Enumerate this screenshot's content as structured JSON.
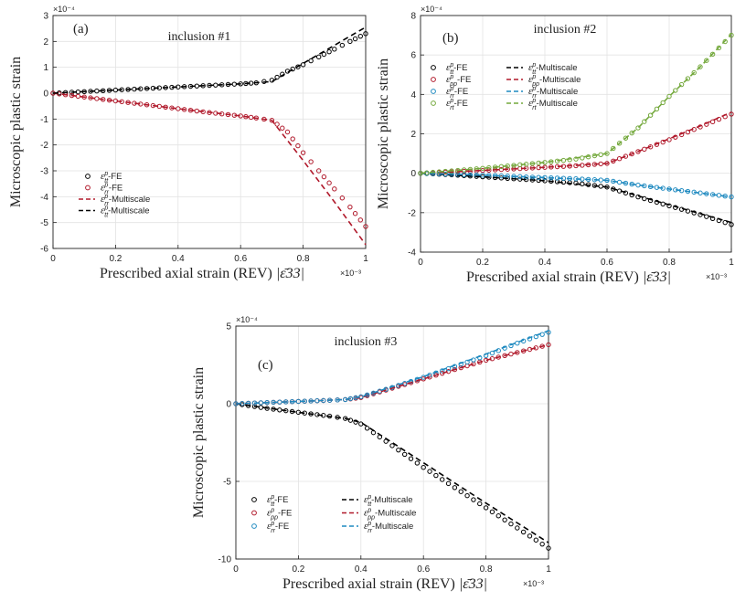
{
  "chart_data": [
    {
      "type": "scatter",
      "panel_label": "(a)",
      "title": "inclusion #1",
      "xlabel": "Prescribed axial strain (REV)",
      "xlabel_symbol": "|ε̄33|",
      "x_multiplier": "×10⁻³",
      "ylabel": "Microscopic plastic strain",
      "y_multiplier": "×10⁻⁴",
      "xlim": [
        0,
        1
      ],
      "ylim": [
        -6,
        3
      ],
      "xticks": [
        0,
        0.2,
        0.4,
        0.6,
        0.8,
        1
      ],
      "xtick_labels": [
        "0",
        "0.2",
        "0.4",
        "0.6",
        "0.8",
        "1"
      ],
      "yticks": [
        -6,
        -5,
        -4,
        -3,
        -2,
        -1,
        0,
        1,
        2,
        3
      ],
      "ytick_labels": [
        "-6",
        "-5",
        "-4",
        "-3",
        "-2",
        "-1",
        "0",
        "1",
        "2",
        "3"
      ],
      "grid": true,
      "series": [
        {
          "name": "εtt-FE",
          "kind": "markers",
          "color": "#000000",
          "x": [
            0,
            0.1,
            0.2,
            0.3,
            0.4,
            0.5,
            0.6,
            0.65,
            0.7,
            0.75,
            0.8,
            0.85,
            0.9,
            0.95,
            1.0
          ],
          "y": [
            0,
            0.06,
            0.12,
            0.18,
            0.24,
            0.3,
            0.36,
            0.4,
            0.5,
            0.85,
            1.1,
            1.4,
            1.7,
            2.0,
            2.3
          ]
        },
        {
          "name": "εrr-FE",
          "kind": "markers",
          "color": "#b0182a",
          "x": [
            0,
            0.1,
            0.2,
            0.3,
            0.4,
            0.5,
            0.6,
            0.65,
            0.7,
            0.75,
            0.8,
            0.85,
            0.9,
            0.95,
            1.0
          ],
          "y": [
            0,
            -0.15,
            -0.3,
            -0.45,
            -0.6,
            -0.75,
            -0.88,
            -0.96,
            -1.05,
            -1.5,
            -2.3,
            -3.0,
            -3.7,
            -4.4,
            -5.15
          ]
        },
        {
          "name": "εrr-Multiscale",
          "kind": "dashed",
          "color": "#b0182a",
          "x": [
            0,
            0.2,
            0.4,
            0.6,
            0.7,
            0.8,
            0.9,
            1.0
          ],
          "y": [
            0,
            -0.3,
            -0.6,
            -0.88,
            -1.05,
            -2.6,
            -4.2,
            -5.85
          ]
        },
        {
          "name": "εtt-Multiscale",
          "kind": "dashed",
          "color": "#000000",
          "x": [
            0,
            0.2,
            0.4,
            0.6,
            0.7,
            0.8,
            0.9,
            1.0
          ],
          "y": [
            0,
            0.12,
            0.24,
            0.36,
            0.45,
            1.15,
            1.85,
            2.55
          ]
        }
      ],
      "legend": [
        {
          "sym": "ε",
          "sub": "tt",
          "text": "-FE"
        },
        {
          "sym": "ε",
          "sub": "rr",
          "text": "-FE"
        },
        {
          "sym": "ε",
          "sub": "rr",
          "text": "-Multiscale"
        },
        {
          "sym": "ε",
          "sub": "tt",
          "text": "-Multiscale"
        }
      ]
    },
    {
      "type": "scatter",
      "panel_label": "(b)",
      "title": "inclusion #2",
      "xlabel": "Prescribed axial strain (REV)",
      "xlabel_symbol": "|ε̄33|",
      "x_multiplier": "×10⁻³",
      "ylabel": "Microscopic plastic strain",
      "y_multiplier": "×10⁻⁴",
      "xlim": [
        0,
        1
      ],
      "ylim": [
        -4,
        8
      ],
      "xticks": [
        0,
        0.2,
        0.4,
        0.6,
        0.8,
        1
      ],
      "xtick_labels": [
        "0",
        "0.2",
        "0.4",
        "0.6",
        "0.8",
        "1"
      ],
      "yticks": [
        -4,
        -2,
        0,
        2,
        4,
        6,
        8
      ],
      "ytick_labels": [
        "-4",
        "-2",
        "0",
        "2",
        "4",
        "6",
        "8"
      ],
      "grid": true,
      "series": [
        {
          "name": "εtt-FE",
          "kind": "markers",
          "color": "#000000",
          "x": [
            0,
            0.1,
            0.2,
            0.3,
            0.4,
            0.5,
            0.6,
            0.7,
            0.8,
            0.9,
            1.0
          ],
          "y": [
            0,
            -0.08,
            -0.18,
            -0.28,
            -0.38,
            -0.5,
            -0.7,
            -1.2,
            -1.65,
            -2.1,
            -2.6
          ]
        },
        {
          "name": "εpp-FE",
          "kind": "markers",
          "color": "#b0182a",
          "x": [
            0,
            0.1,
            0.2,
            0.3,
            0.4,
            0.5,
            0.6,
            0.7,
            0.8,
            0.9,
            1.0
          ],
          "y": [
            0,
            0.07,
            0.14,
            0.22,
            0.3,
            0.38,
            0.5,
            1.1,
            1.7,
            2.35,
            3.0
          ]
        },
        {
          "name": "εrr-FE",
          "kind": "markers",
          "color": "#1f8ac0",
          "x": [
            0,
            0.1,
            0.2,
            0.3,
            0.4,
            0.5,
            0.6,
            0.7,
            0.8,
            0.9,
            1.0
          ],
          "y": [
            0,
            -0.05,
            -0.1,
            -0.16,
            -0.22,
            -0.28,
            -0.36,
            -0.6,
            -0.8,
            -1.0,
            -1.2
          ]
        },
        {
          "name": "εrt-FE",
          "kind": "markers",
          "color": "#73a83b",
          "x": [
            0,
            0.1,
            0.2,
            0.3,
            0.4,
            0.5,
            0.6,
            0.7,
            0.8,
            0.9,
            1.0
          ],
          "y": [
            0,
            0.12,
            0.25,
            0.4,
            0.55,
            0.72,
            1.0,
            2.3,
            3.9,
            5.4,
            7.0
          ]
        },
        {
          "name": "εtt-Multiscale",
          "kind": "dashed",
          "color": "#000000",
          "x": [
            0,
            0.2,
            0.4,
            0.6,
            0.7,
            0.8,
            0.9,
            1.0
          ],
          "y": [
            0,
            -0.18,
            -0.38,
            -0.7,
            -1.15,
            -1.6,
            -2.05,
            -2.5
          ]
        },
        {
          "name": "εpp-Multiscale",
          "kind": "dashed",
          "color": "#b0182a",
          "x": [
            0,
            0.2,
            0.4,
            0.6,
            0.7,
            0.8,
            0.9,
            1.0
          ],
          "y": [
            0,
            0.14,
            0.3,
            0.5,
            1.1,
            1.75,
            2.4,
            3.1
          ]
        },
        {
          "name": "εrr-Multiscale",
          "kind": "dashed",
          "color": "#1f8ac0",
          "x": [
            0,
            0.2,
            0.4,
            0.6,
            0.7,
            0.8,
            0.9,
            1.0
          ],
          "y": [
            0,
            -0.1,
            -0.22,
            -0.36,
            -0.6,
            -0.8,
            -1.0,
            -1.2
          ]
        },
        {
          "name": "εrt-Multiscale",
          "kind": "dashed",
          "color": "#73a83b",
          "x": [
            0,
            0.2,
            0.4,
            0.6,
            0.7,
            0.8,
            0.9,
            1.0
          ],
          "y": [
            0,
            0.25,
            0.55,
            1.0,
            2.3,
            3.9,
            5.4,
            7.05
          ]
        }
      ],
      "legend": [
        {
          "sym": "ε",
          "sub": "tt",
          "text": "-FE"
        },
        {
          "sym": "ε",
          "sub": "pp",
          "text": "-FE"
        },
        {
          "sym": "ε",
          "sub": "rr",
          "text": "-FE"
        },
        {
          "sym": "ε",
          "sub": "rt",
          "text": "-FE"
        },
        {
          "sym": "ε",
          "sub": "tt",
          "text": "-Multiscale"
        },
        {
          "sym": "ε",
          "sub": "pp",
          "text": "-Multiscale"
        },
        {
          "sym": "ε",
          "sub": "rr",
          "text": "-Multiscale"
        },
        {
          "sym": "ε",
          "sub": "rt",
          "text": "-Multiscale"
        }
      ]
    },
    {
      "type": "scatter",
      "panel_label": "(c)",
      "title": "inclusion #3",
      "xlabel": "Prescribed axial strain (REV)",
      "xlabel_symbol": "|ε̄33|",
      "x_multiplier": "×10⁻³",
      "ylabel": "Microscopic plastic strain",
      "y_multiplier": "×10⁻⁴",
      "xlim": [
        0,
        1
      ],
      "ylim": [
        -10,
        5
      ],
      "xticks": [
        0,
        0.2,
        0.4,
        0.6,
        0.8,
        1
      ],
      "xtick_labels": [
        "0",
        "0.2",
        "0.4",
        "0.6",
        "0.8",
        "1"
      ],
      "yticks": [
        -10,
        -5,
        0,
        5
      ],
      "ytick_labels": [
        "-10",
        "-5",
        "0",
        "5"
      ],
      "grid": true,
      "series": [
        {
          "name": "εtt-FE",
          "kind": "markers",
          "color": "#000000",
          "x": [
            0,
            0.1,
            0.2,
            0.3,
            0.35,
            0.4,
            0.5,
            0.6,
            0.7,
            0.8,
            0.9,
            1.0
          ],
          "y": [
            0,
            -0.3,
            -0.55,
            -0.8,
            -0.95,
            -1.3,
            -2.7,
            -4.1,
            -5.4,
            -6.7,
            -8.0,
            -9.3
          ]
        },
        {
          "name": "εpp-FE",
          "kind": "markers",
          "color": "#b0182a",
          "x": [
            0,
            0.1,
            0.2,
            0.3,
            0.35,
            0.4,
            0.5,
            0.6,
            0.7,
            0.8,
            0.9,
            1.0
          ],
          "y": [
            0,
            0.08,
            0.15,
            0.22,
            0.27,
            0.4,
            1.0,
            1.6,
            2.2,
            2.8,
            3.3,
            3.8
          ]
        },
        {
          "name": "εrr-FE",
          "kind": "markers",
          "color": "#1f8ac0",
          "x": [
            0,
            0.1,
            0.2,
            0.3,
            0.35,
            0.4,
            0.5,
            0.6,
            0.7,
            0.8,
            0.9,
            1.0
          ],
          "y": [
            0,
            0.08,
            0.15,
            0.22,
            0.27,
            0.45,
            1.05,
            1.7,
            2.4,
            3.1,
            3.9,
            4.6
          ]
        },
        {
          "name": "εtt-Multiscale",
          "kind": "dashed",
          "color": "#000000",
          "x": [
            0,
            0.2,
            0.35,
            0.4,
            0.6,
            0.8,
            1.0
          ],
          "y": [
            0,
            -0.55,
            -0.95,
            -1.2,
            -3.8,
            -6.4,
            -8.95
          ]
        },
        {
          "name": "εpp-Multiscale",
          "kind": "dashed",
          "color": "#b0182a",
          "x": [
            0,
            0.2,
            0.35,
            0.4,
            0.6,
            0.8,
            1.0
          ],
          "y": [
            0,
            0.15,
            0.27,
            0.4,
            1.6,
            2.8,
            3.8
          ]
        },
        {
          "name": "εrr-Multiscale",
          "kind": "dashed",
          "color": "#1f8ac0",
          "x": [
            0,
            0.2,
            0.35,
            0.4,
            0.6,
            0.8,
            1.0
          ],
          "y": [
            0,
            0.15,
            0.27,
            0.45,
            1.75,
            3.2,
            4.7
          ]
        }
      ],
      "legend": [
        {
          "sym": "ε",
          "sub": "tt",
          "text": "-FE"
        },
        {
          "sym": "ε",
          "sub": "pp",
          "text": "-FE"
        },
        {
          "sym": "ε",
          "sub": "rr",
          "text": "-FE"
        },
        {
          "sym": "ε",
          "sub": "tt",
          "text": "-Multiscale"
        },
        {
          "sym": "ε",
          "sub": "pp",
          "text": "-Multiscale"
        },
        {
          "sym": "ε",
          "sub": "rr",
          "text": "-Multiscale"
        }
      ]
    }
  ]
}
